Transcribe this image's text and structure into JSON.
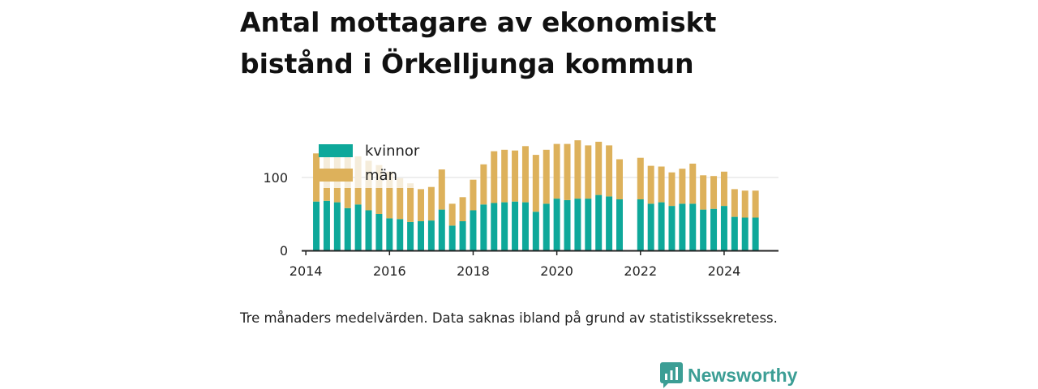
{
  "title": "Antal mottagare av ekonomiskt bistånd i Örkelljunga kommun",
  "note": "Tre månaders medelvärden. Data saknas ibland på grund av statistikssekretess.",
  "brand": "Newsworthy",
  "colors": {
    "kvinnor": "#0ea89a",
    "man": "#ddb15b",
    "man_faded": "#f5ecda",
    "grid": "#dcdcdc",
    "axis": "#222222",
    "brand": "#3c9e95"
  },
  "chart_data": {
    "type": "bar",
    "stacked": true,
    "x_ticks": [
      "2014",
      "2016",
      "2018",
      "2020",
      "2022",
      "2024"
    ],
    "y_ticks": [
      "0",
      "100"
    ],
    "ylim": [
      0,
      150
    ],
    "xlim": [
      2013.9,
      2025.3
    ],
    "legend_position": "top-left",
    "series": [
      {
        "name": "kvinnor",
        "x": [
          2014.25,
          2014.5,
          2014.75,
          2015.0,
          2015.25,
          2015.5,
          2015.75,
          2016.0,
          2016.25,
          2016.5,
          2016.75,
          2017.0,
          2017.25,
          2017.5,
          2017.75,
          2018.0,
          2018.25,
          2018.5,
          2018.75,
          2019.0,
          2019.25,
          2019.5,
          2019.75,
          2020.0,
          2020.25,
          2020.5,
          2020.75,
          2021.0,
          2021.25,
          2021.5,
          2022.0,
          2022.25,
          2022.5,
          2022.75,
          2023.0,
          2023.25,
          2023.5,
          2023.75,
          2024.0,
          2024.25,
          2024.5,
          2024.75
        ],
        "values": [
          67,
          68,
          66,
          58,
          63,
          55,
          50,
          44,
          43,
          39,
          40,
          41,
          56,
          34,
          40,
          55,
          63,
          65,
          66,
          67,
          66,
          53,
          64,
          71,
          69,
          71,
          71,
          76,
          74,
          70,
          70,
          64,
          66,
          61,
          64,
          64,
          56,
          57,
          61,
          46,
          45,
          45
        ]
      },
      {
        "name": "män",
        "x": [
          2014.25,
          2014.5,
          2014.75,
          2015.0,
          2015.25,
          2015.5,
          2015.75,
          2016.0,
          2016.25,
          2016.5,
          2016.75,
          2017.0,
          2017.25,
          2017.5,
          2017.75,
          2018.0,
          2018.25,
          2018.5,
          2018.75,
          2019.0,
          2019.25,
          2019.5,
          2019.75,
          2020.0,
          2020.25,
          2020.5,
          2020.75,
          2021.0,
          2021.25,
          2021.5,
          2022.0,
          2022.25,
          2022.5,
          2022.75,
          2023.0,
          2023.25,
          2023.5,
          2023.75,
          2024.0,
          2024.25,
          2024.5,
          2024.75
        ],
        "values": [
          66,
          61,
          66,
          73,
          66,
          68,
          67,
          64,
          56,
          53,
          44,
          46,
          55,
          30,
          33,
          42,
          55,
          71,
          72,
          70,
          77,
          78,
          74,
          75,
          77,
          80,
          73,
          73,
          70,
          55,
          57,
          52,
          49,
          46,
          48,
          55,
          47,
          45,
          47,
          38,
          37,
          37
        ]
      }
    ]
  }
}
